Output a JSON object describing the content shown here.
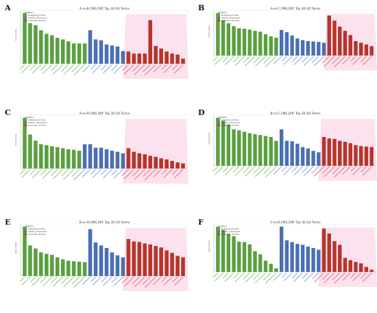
{
  "legend": {
    "title": "category",
    "entries": [
      {
        "name": "biological_process",
        "color": "#5aa040"
      },
      {
        "name": "cellular_component",
        "color": "#4a6fb5"
      },
      {
        "name": "molecular_function",
        "color": "#b5352a"
      }
    ]
  },
  "chart_data": [
    {
      "panel": "A",
      "type": "bar",
      "title": "A-vs-B.CMG.Diff: Top 30 GO Terms",
      "ylabel": "-log10_Pvalue",
      "groups": {
        "biological_process": 12,
        "cellular_component": 7,
        "molecular_function": 11
      },
      "values": [
        1.0,
        0.8,
        0.76,
        0.66,
        0.59,
        0.56,
        0.51,
        0.48,
        0.44,
        0.4,
        0.4,
        0.4,
        0.66,
        0.48,
        0.46,
        0.38,
        0.36,
        0.34,
        0.25,
        0.24,
        0.2,
        0.2,
        0.2,
        0.86,
        0.35,
        0.3,
        0.24,
        0.2,
        0.18,
        0.1
      ]
    },
    {
      "panel": "B",
      "type": "bar",
      "title": "A-vs-C.CMG.Diff: Top 30 GO Terms",
      "ylabel": "-log10_Pvalue",
      "groups": {
        "biological_process": 12,
        "cellular_component": 9,
        "molecular_function": 9
      },
      "values": [
        1.0,
        0.83,
        0.76,
        0.69,
        0.64,
        0.63,
        0.61,
        0.58,
        0.56,
        0.5,
        0.45,
        0.42,
        0.6,
        0.55,
        0.47,
        0.4,
        0.36,
        0.34,
        0.33,
        0.32,
        0.3,
        0.94,
        0.82,
        0.68,
        0.58,
        0.48,
        0.34,
        0.3,
        0.26,
        0.22
      ]
    },
    {
      "panel": "C",
      "type": "bar",
      "title": "A-vs-D.CMG.Diff: Top 30 GO Terms",
      "ylabel": "-log10_Pvalue",
      "groups": {
        "biological_process": 11,
        "cellular_component": 8,
        "molecular_function": 11
      },
      "values": [
        1.0,
        0.67,
        0.55,
        0.48,
        0.46,
        0.44,
        0.42,
        0.4,
        0.38,
        0.37,
        0.35,
        0.48,
        0.48,
        0.41,
        0.41,
        0.38,
        0.35,
        0.33,
        0.3,
        0.4,
        0.33,
        0.3,
        0.28,
        0.25,
        0.23,
        0.2,
        0.18,
        0.15,
        0.12,
        0.1
      ]
    },
    {
      "panel": "D",
      "type": "bar",
      "title": "B-vs-C.CMG.Diff: Top 30 GO Terms",
      "ylabel": "-log10_Pvalue",
      "groups": {
        "biological_process": 12,
        "cellular_component": 8,
        "molecular_function": 10
      },
      "values": [
        1.0,
        0.94,
        0.86,
        0.76,
        0.74,
        0.71,
        0.68,
        0.66,
        0.64,
        0.62,
        0.6,
        0.52,
        0.76,
        0.52,
        0.51,
        0.46,
        0.39,
        0.36,
        0.31,
        0.28,
        0.6,
        0.57,
        0.56,
        0.52,
        0.5,
        0.47,
        0.43,
        0.41,
        0.4,
        0.39
      ]
    },
    {
      "panel": "E",
      "type": "bar",
      "title": "B-vs-D.CMG.Diff: Top 30 GO Terms",
      "ylabel": "-log10_Pvalue",
      "groups": {
        "biological_process": 12,
        "cellular_component": 7,
        "molecular_function": 11
      },
      "values": [
        1.0,
        0.62,
        0.56,
        0.48,
        0.45,
        0.43,
        0.38,
        0.34,
        0.31,
        0.3,
        0.29,
        0.28,
        0.95,
        0.68,
        0.62,
        0.57,
        0.48,
        0.42,
        0.38,
        0.75,
        0.7,
        0.69,
        0.66,
        0.64,
        0.61,
        0.58,
        0.52,
        0.47,
        0.41,
        0.38
      ]
    },
    {
      "panel": "F",
      "type": "bar",
      "title": "C-vs-D.CMG.Diff: Top 30 GO Terms",
      "ylabel": "-log10_Pvalue",
      "groups": {
        "biological_process": 12,
        "cellular_component": 8,
        "molecular_function": 10
      },
      "values": [
        1.0,
        0.93,
        0.84,
        0.79,
        0.67,
        0.66,
        0.61,
        0.46,
        0.39,
        0.25,
        0.18,
        0.08,
        1.0,
        0.7,
        0.66,
        0.62,
        0.6,
        0.56,
        0.53,
        0.49,
        0.96,
        0.85,
        0.68,
        0.6,
        0.31,
        0.26,
        0.22,
        0.19,
        0.11,
        0.05
      ]
    }
  ]
}
